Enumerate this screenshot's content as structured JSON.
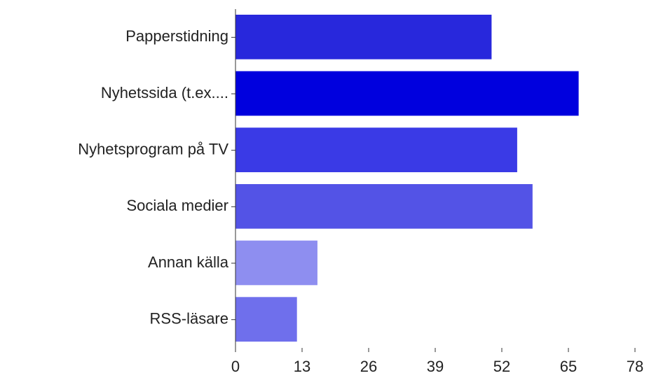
{
  "chart_data": {
    "type": "bar",
    "orientation": "horizontal",
    "categories": [
      "Papperstidning",
      "Nyhetssida (t.ex....",
      "Nyhetsprogram på TV",
      "Sociala medier",
      "Annan källa",
      "RSS-läsare"
    ],
    "values": [
      50,
      67,
      55,
      58,
      16,
      12
    ],
    "colors": [
      "#2828dc",
      "#0000de",
      "#3a3ae6",
      "#5353e6",
      "#8e8ef0",
      "#6f6fec"
    ],
    "xlim": [
      0,
      78
    ],
    "xticks": [
      0,
      13,
      26,
      39,
      52,
      65,
      78
    ]
  }
}
